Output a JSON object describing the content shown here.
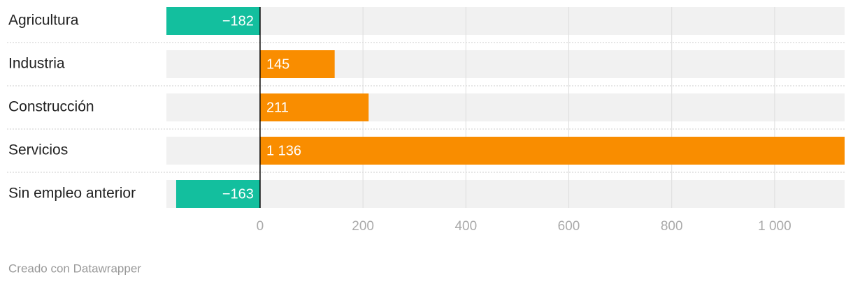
{
  "chart_data": {
    "type": "bar",
    "categories": [
      "Agricultura",
      "Industria",
      "Construcción",
      "Servicios",
      "Sin empleo anterior"
    ],
    "values": [
      -182,
      145,
      211,
      1136,
      -163
    ],
    "value_labels": [
      "−182",
      "145",
      "211",
      "1 136",
      "−163"
    ],
    "colors": [
      "#13bf9e",
      "#f98d00",
      "#f98d00",
      "#f98d00",
      "#13bf9e"
    ],
    "xlim": [
      -182,
      1136
    ],
    "xticks": [
      0,
      200,
      400,
      600,
      800,
      {
        "value": 1000,
        "label": "1 000"
      }
    ],
    "grid": true,
    "credit": "Creado con Datawrapper"
  }
}
